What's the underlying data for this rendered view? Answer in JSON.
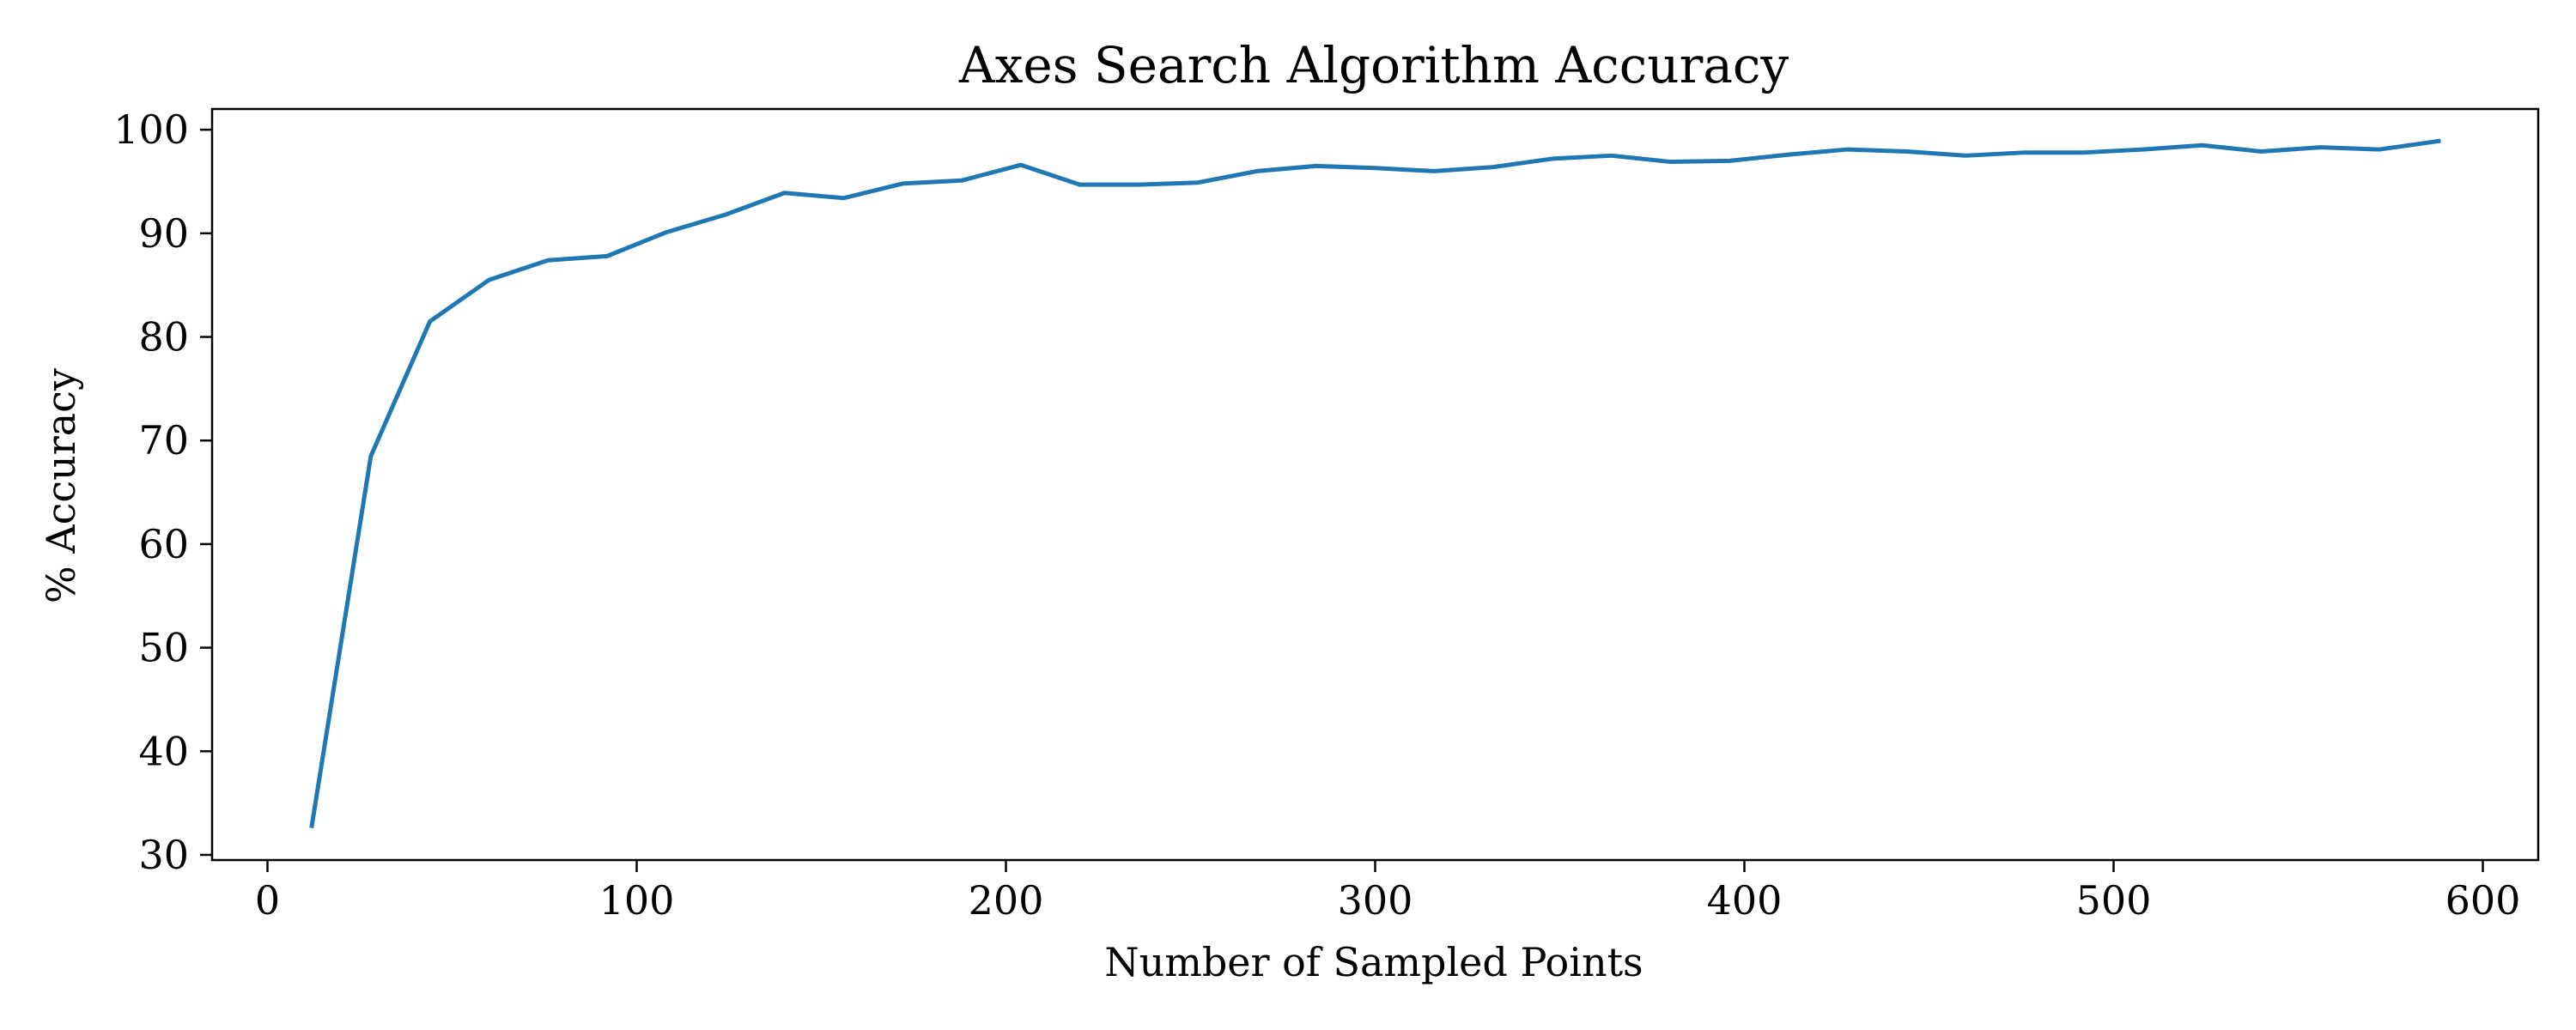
{
  "chart_data": {
    "type": "line",
    "title": "Axes Search Algorithm Accuracy",
    "xlabel": "Number of Sampled Points",
    "ylabel": "% Accuracy",
    "xlim": [
      -15,
      615
    ],
    "ylim": [
      29.5,
      102
    ],
    "xticks": [
      0,
      100,
      200,
      300,
      400,
      500,
      600
    ],
    "yticks": [
      30,
      40,
      50,
      60,
      70,
      80,
      90,
      100
    ],
    "grid": false,
    "series": [
      {
        "color": "#1f77b4",
        "x": [
          12,
          28,
          44,
          60,
          76,
          92,
          108,
          124,
          140,
          156,
          172,
          188,
          204,
          220,
          236,
          252,
          268,
          284,
          300,
          316,
          332,
          348,
          364,
          380,
          396,
          412,
          428,
          444,
          460,
          476,
          492,
          508,
          524,
          540,
          556,
          572,
          588
        ],
        "y": [
          32.8,
          68.5,
          81.5,
          85.5,
          87.4,
          87.8,
          90.1,
          91.8,
          93.9,
          93.4,
          94.8,
          95.1,
          96.6,
          94.7,
          94.7,
          94.9,
          96.0,
          96.5,
          96.3,
          96.0,
          96.4,
          97.2,
          97.5,
          96.9,
          97.0,
          97.6,
          98.1,
          97.9,
          97.5,
          97.8,
          97.8,
          98.1,
          98.5,
          97.9,
          98.3,
          98.1,
          98.9
        ]
      }
    ]
  }
}
